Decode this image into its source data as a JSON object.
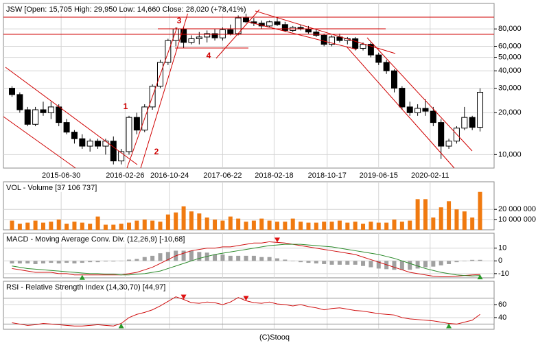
{
  "chart_data": [
    {
      "type": "candlestick",
      "title": "JSW [Open: 15,705 High: 29,950 Low: 14,660 Close: 28,020 (+78,41%)",
      "log_scale": true,
      "ylim": [
        8000,
        122000
      ],
      "yticks": [
        {
          "value": 10000,
          "label": "10,000"
        },
        {
          "value": 20000,
          "label": "20,000"
        },
        {
          "value": 30000,
          "label": "30,000"
        },
        {
          "value": 40000,
          "label": "40,000"
        },
        {
          "value": 50000,
          "label": "50,000"
        },
        {
          "value": 60000,
          "label": "60,000"
        },
        {
          "value": 80000,
          "label": "80,000"
        }
      ],
      "xlim": [
        -1.1,
        61.8
      ],
      "xticks": [
        {
          "value": 6.3,
          "label": "2015-06-30"
        },
        {
          "value": 14.5,
          "label": "2016-02-26"
        },
        {
          "value": 20.2,
          "label": "2016-10-24"
        },
        {
          "value": 27.0,
          "label": "2017-06-22"
        },
        {
          "value": 33.6,
          "label": "2018-02-18"
        },
        {
          "value": 40.4,
          "label": "2018-10-17"
        },
        {
          "value": 47.0,
          "label": "2019-06-15"
        },
        {
          "value": 53.6,
          "label": "2020-02-11"
        }
      ],
      "grid": true,
      "up_color": "#ffffff",
      "down_color": "#000000",
      "open": [
        30000,
        27000,
        21000,
        16500,
        21000,
        20000,
        22000,
        17000,
        14500,
        13000,
        11500,
        12500,
        11500,
        12500,
        9000,
        10500,
        18500,
        15000,
        22000,
        31000,
        46000,
        66000,
        80000,
        64000,
        68000,
        70000,
        74000,
        69000,
        79000,
        74000,
        96000,
        90000,
        88000,
        84000,
        90000,
        86000,
        78000,
        82000,
        80000,
        76000,
        72000,
        62000,
        70000,
        66000,
        68000,
        58000,
        62000,
        52000,
        46000,
        40000,
        30000,
        22000,
        20000,
        21500,
        20500,
        17000,
        11500,
        12500,
        15500,
        18500,
        15705
      ],
      "high": [
        31000,
        28000,
        22000,
        22000,
        24000,
        24000,
        23000,
        18000,
        15000,
        14000,
        13000,
        13000,
        13000,
        13500,
        11000,
        19000,
        20000,
        23000,
        32000,
        48000,
        68000,
        82000,
        82000,
        72000,
        76000,
        78000,
        80000,
        82000,
        86000,
        100000,
        104000,
        96000,
        92000,
        92000,
        96000,
        90000,
        84000,
        86000,
        84000,
        80000,
        74000,
        72000,
        74000,
        70000,
        70000,
        64000,
        64000,
        54000,
        48000,
        41000,
        31000,
        24000,
        23000,
        25000,
        22000,
        18000,
        13000,
        16000,
        22000,
        19000,
        29950
      ],
      "low": [
        26000,
        20000,
        16000,
        16000,
        19000,
        18000,
        16000,
        14000,
        12000,
        11000,
        10500,
        11000,
        10000,
        8500,
        8500,
        10000,
        14000,
        14500,
        21000,
        30000,
        44000,
        60000,
        58000,
        62000,
        62000,
        64000,
        66000,
        66000,
        72000,
        72000,
        88000,
        84000,
        80000,
        82000,
        84000,
        76000,
        76000,
        78000,
        74000,
        70000,
        60000,
        60000,
        64000,
        62000,
        56000,
        56000,
        50000,
        44000,
        38000,
        28000,
        21000,
        19000,
        19000,
        19000,
        16000,
        9300,
        11000,
        12000,
        15000,
        15000,
        14660
      ],
      "close": [
        27000,
        21000,
        16500,
        21000,
        20000,
        22000,
        17000,
        14500,
        13000,
        11500,
        12500,
        11500,
        12500,
        9000,
        10500,
        18500,
        15000,
        22000,
        31000,
        46000,
        66000,
        80000,
        64000,
        68000,
        70000,
        74000,
        69000,
        79000,
        74000,
        96000,
        90000,
        88000,
        84000,
        90000,
        86000,
        78000,
        82000,
        80000,
        76000,
        72000,
        62000,
        70000,
        66000,
        68000,
        58000,
        62000,
        52000,
        46000,
        40000,
        30000,
        22000,
        20000,
        21500,
        20500,
        17000,
        11500,
        12500,
        15500,
        18500,
        15700,
        28020
      ],
      "annotations": [
        "1",
        "2",
        "3",
        "4"
      ]
    },
    {
      "type": "bar",
      "title": "VOL - Volume [37 106 737]",
      "ylim": [
        0,
        47000000
      ],
      "yticks": [
        {
          "value": 10000000,
          "label": "10 000 000"
        },
        {
          "value": 20000000,
          "label": "20 000 000"
        }
      ],
      "xlim": [
        -1.1,
        61.8
      ],
      "grid": true,
      "color": "#f07a10",
      "values": [
        9000000,
        6000000,
        7000000,
        9000000,
        7000000,
        8000000,
        10000000,
        6000000,
        8000000,
        7000000,
        6000000,
        13000000,
        5000000,
        5000000,
        6000000,
        7000000,
        9000000,
        10000000,
        9000000,
        8000000,
        15000000,
        17000000,
        23000000,
        18000000,
        16000000,
        12000000,
        10000000,
        9000000,
        13000000,
        11000000,
        8000000,
        9000000,
        11000000,
        9000000,
        8000000,
        8000000,
        11000000,
        8000000,
        7000000,
        7000000,
        8000000,
        8000000,
        9000000,
        7000000,
        8000000,
        6000000,
        8000000,
        7000000,
        7000000,
        10000000,
        8000000,
        9000000,
        30000000,
        30000000,
        12000000,
        22000000,
        28000000,
        20000000,
        18000000,
        12000000,
        37106737
      ]
    },
    {
      "type": "line",
      "title": "MACD - Moving Average Conv. Div. (12,26,9) [-10,68]",
      "ylim": [
        -13.3,
        21.7
      ],
      "yticks": [
        -10,
        0,
        10
      ],
      "xlim": [
        -1.1,
        61.8
      ],
      "grid": true,
      "series": [
        {
          "color": "#d01010",
          "values": [
            -6,
            -7,
            -8,
            -9,
            -9,
            -9,
            -10,
            -10,
            -11,
            -11,
            -11,
            -11,
            -11,
            -11,
            -11,
            -10,
            -9,
            -7,
            -5,
            -2,
            1,
            4,
            6,
            8,
            9,
            10,
            10,
            11,
            11,
            12,
            13,
            14,
            14,
            15,
            14.5,
            14,
            13,
            12,
            11,
            10,
            9,
            8,
            7,
            6,
            5,
            3,
            1,
            -1,
            -3,
            -5,
            -7,
            -9,
            -10,
            -11,
            -12,
            -12.5,
            -12.5,
            -12,
            -11.5,
            -11,
            -10.68
          ]
        },
        {
          "color": "#2a8a2a",
          "values": [
            -4,
            -5,
            -6,
            -6.5,
            -7,
            -7.5,
            -8,
            -8.5,
            -9,
            -9.5,
            -10,
            -10,
            -10.5,
            -10.5,
            -11,
            -11,
            -10.5,
            -10,
            -9,
            -8,
            -6,
            -4,
            -2,
            0,
            2,
            3.5,
            5,
            6,
            7,
            8,
            9,
            10,
            11,
            12,
            12.5,
            13,
            13,
            13,
            12.5,
            12,
            11.5,
            11,
            10,
            9,
            8,
            7,
            6,
            5,
            3.5,
            2,
            0,
            -2,
            -4,
            -6,
            -7.5,
            -9,
            -10,
            -11,
            -11.5,
            -11.8,
            -11.5
          ]
        }
      ],
      "bars": {
        "color": "#a0a0a0",
        "values": [
          -2,
          -2,
          -2,
          -2.5,
          -2,
          -1.5,
          -2,
          -1.5,
          -2,
          -1.5,
          -1,
          -1,
          -0.5,
          -0.5,
          0,
          1,
          1.5,
          3,
          4,
          6,
          7,
          8,
          8,
          8,
          7,
          6.5,
          5,
          5,
          4,
          4,
          4,
          4,
          3,
          3,
          2,
          1,
          0,
          -1,
          -1.5,
          -2,
          -2.5,
          -3,
          -3,
          -3,
          -3,
          -4,
          -5,
          -6,
          -6.5,
          -7,
          -7,
          -7,
          -6,
          -5,
          -4.5,
          -3.5,
          -2.5,
          -1,
          0,
          0.8,
          0.82
        ]
      },
      "markers": [
        {
          "index": 9,
          "direction": "up",
          "color": "#2a9a2a"
        },
        {
          "index": 34,
          "direction": "down",
          "color": "#e01010"
        },
        {
          "index": 60,
          "direction": "up",
          "color": "#2a9a2a"
        }
      ]
    },
    {
      "type": "line",
      "title": "RSI - Relative Strength Index (14,30,70) [44,97]",
      "ylim": [
        22,
        96
      ],
      "yticks": [
        40,
        60
      ],
      "levels": [
        30,
        70
      ],
      "xlim": [
        -1.1,
        61.8
      ],
      "grid": true,
      "series": [
        {
          "color": "#d01010",
          "values": [
            32,
            30,
            28,
            29,
            31,
            30,
            29,
            28,
            27,
            27,
            28,
            29,
            28,
            27,
            31,
            40,
            45,
            48,
            52,
            58,
            65,
            72,
            68,
            63,
            62,
            64,
            63,
            60,
            64,
            71,
            66,
            63,
            62,
            64,
            61,
            60,
            58,
            60,
            57,
            55,
            52,
            54,
            55,
            53,
            51,
            50,
            48,
            46,
            45,
            44,
            40,
            38,
            37,
            36,
            35,
            33,
            31,
            30,
            33,
            36,
            44.97
          ]
        }
      ],
      "markers": [
        {
          "index": 14,
          "direction": "up",
          "color": "#2a9a2a"
        },
        {
          "index": 22,
          "direction": "down",
          "color": "#e01010"
        },
        {
          "index": 30,
          "direction": "down",
          "color": "#e01010"
        },
        {
          "index": 56,
          "direction": "up",
          "color": "#2a9a2a"
        }
      ]
    }
  ],
  "footer": "(C)Stooq"
}
